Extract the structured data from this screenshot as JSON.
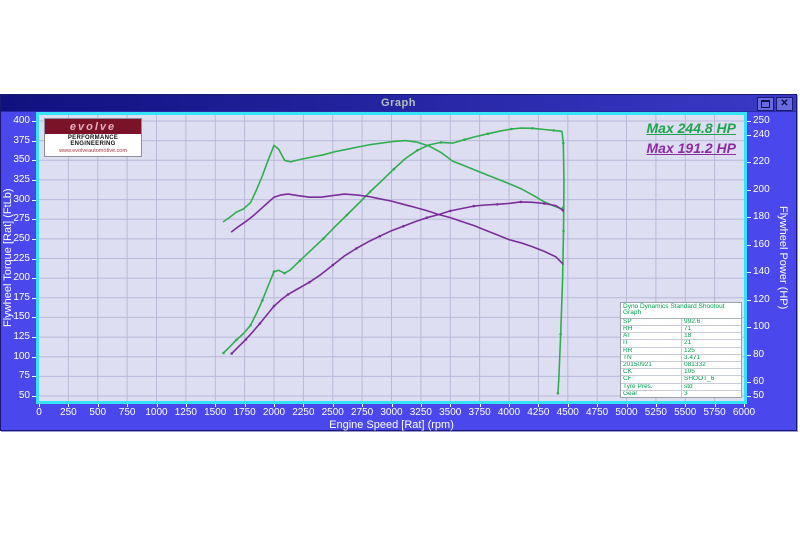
{
  "window": {
    "title": "Graph",
    "buttons": {
      "restore": "restore-window",
      "close": "close-window"
    }
  },
  "logo": {
    "brand": "evolve",
    "line1": "PERFORMANCE ENGINEERING",
    "url": "www.evolveautomotive.com"
  },
  "annotations": {
    "max_run1": "Max 244.8 HP",
    "max_run2": "Max 191.2 HP"
  },
  "info_table": {
    "header": "Dyno Dynamics Standard Shootout Graph",
    "rows": [
      [
        "SP",
        "992.6"
      ],
      [
        "RH",
        "71"
      ],
      [
        "AT",
        "18"
      ],
      [
        "IT",
        "21"
      ],
      [
        "RR",
        "125"
      ],
      [
        "TN",
        "3.471"
      ],
      [
        "20150921",
        "081332"
      ],
      [
        "CK",
        "105"
      ],
      [
        "CF",
        "SHOOT_6"
      ],
      [
        "Tyre Pres.",
        "std"
      ],
      [
        "Gear",
        "3"
      ]
    ]
  },
  "chart_data": {
    "type": "line",
    "title": "Dyno Dynamics Standard Shootout Graph",
    "xlabel": "Engine Speed [Rat] (rpm)",
    "ylabel_left": "Flywheel Torque [Rat] (FtLb)",
    "ylabel_right": "Flywheel Power (HP)",
    "x_range": [
      0,
      6000
    ],
    "x_ticks": [
      0,
      250,
      500,
      750,
      1000,
      1250,
      1500,
      1750,
      2000,
      2250,
      2500,
      2750,
      3000,
      3250,
      3500,
      3750,
      4000,
      4250,
      4500,
      4750,
      5000,
      5250,
      5500,
      5750,
      6000
    ],
    "left_range": [
      50,
      400
    ],
    "left_ticks": [
      400,
      375,
      350,
      325,
      300,
      275,
      250,
      225,
      200,
      175,
      150,
      125,
      100,
      75,
      50
    ],
    "right_range": [
      50,
      250
    ],
    "right_ticks": [
      250,
      240,
      220,
      200,
      180,
      160,
      140,
      120,
      100,
      80,
      60,
      50
    ],
    "grid": true,
    "grid_color": "#b8b8d8",
    "plot_bg": "#dedef2",
    "max_power_run1_hp": 244.8,
    "max_power_run2_hp": 191.2,
    "series": [
      {
        "id": "run1-torque",
        "name": "Run 1 Torque (FtLb)",
        "axis": "left",
        "color": "#2fae4e",
        "markers": false,
        "points": [
          [
            1570,
            272
          ],
          [
            1620,
            277
          ],
          [
            1680,
            284
          ],
          [
            1740,
            288
          ],
          [
            1800,
            296
          ],
          [
            1850,
            312
          ],
          [
            1900,
            330
          ],
          [
            1950,
            350
          ],
          [
            2000,
            369
          ],
          [
            2040,
            364
          ],
          [
            2090,
            350
          ],
          [
            2140,
            348
          ],
          [
            2220,
            351
          ],
          [
            2320,
            354
          ],
          [
            2420,
            357
          ],
          [
            2520,
            361
          ],
          [
            2620,
            364
          ],
          [
            2720,
            367
          ],
          [
            2820,
            370
          ],
          [
            2920,
            372
          ],
          [
            3020,
            374
          ],
          [
            3120,
            375
          ],
          [
            3220,
            373
          ],
          [
            3320,
            368
          ],
          [
            3420,
            360
          ],
          [
            3520,
            349
          ],
          [
            3620,
            343
          ],
          [
            3720,
            337
          ],
          [
            3820,
            331
          ],
          [
            3920,
            325
          ],
          [
            4020,
            319
          ],
          [
            4100,
            314
          ],
          [
            4200,
            306
          ],
          [
            4300,
            297
          ],
          [
            4380,
            292
          ],
          [
            4450,
            288
          ],
          [
            4462,
            291
          ]
        ]
      },
      {
        "id": "run1-power",
        "name": "Run 1 Power (HP)",
        "axis": "right",
        "color": "#2fae4e",
        "markers": true,
        "points": [
          [
            1570,
            81.3
          ],
          [
            1620,
            85.4
          ],
          [
            1680,
            90.8
          ],
          [
            1740,
            95.4
          ],
          [
            1800,
            101.4
          ],
          [
            1850,
            109.9
          ],
          [
            1900,
            119.4
          ],
          [
            1950,
            130.0
          ],
          [
            2000,
            140.5
          ],
          [
            2040,
            141.4
          ],
          [
            2090,
            139.3
          ],
          [
            2140,
            141.8
          ],
          [
            2220,
            148.4
          ],
          [
            2320,
            156.4
          ],
          [
            2420,
            164.5
          ],
          [
            2520,
            173.2
          ],
          [
            2620,
            181.6
          ],
          [
            2720,
            190.1
          ],
          [
            2820,
            198.7
          ],
          [
            2920,
            206.8
          ],
          [
            3020,
            215.1
          ],
          [
            3120,
            222.8
          ],
          [
            3220,
            228.7
          ],
          [
            3320,
            232.6
          ],
          [
            3420,
            234.4
          ],
          [
            3520,
            233.9
          ],
          [
            3620,
            236.4
          ],
          [
            3720,
            238.7
          ],
          [
            3820,
            240.7
          ],
          [
            3920,
            242.6
          ],
          [
            4020,
            244.2
          ],
          [
            4100,
            244.8
          ],
          [
            4200,
            244.7
          ],
          [
            4300,
            243.8
          ],
          [
            4380,
            243.2
          ],
          [
            4450,
            242.5
          ],
          [
            4462,
            234.0
          ],
          [
            4468,
            205.0
          ],
          [
            4464,
            170.0
          ],
          [
            4456,
            135.0
          ],
          [
            4440,
            95.0
          ],
          [
            4424,
            62.0
          ],
          [
            4416,
            52.0
          ]
        ]
      },
      {
        "id": "run2-torque",
        "name": "Run 2 Torque (FtLb)",
        "axis": "left",
        "color": "#7b2d9b",
        "markers": false,
        "points": [
          [
            1640,
            259
          ],
          [
            1700,
            266
          ],
          [
            1760,
            272
          ],
          [
            1820,
            279
          ],
          [
            1880,
            287
          ],
          [
            1940,
            295
          ],
          [
            2000,
            303
          ],
          [
            2060,
            306
          ],
          [
            2120,
            307
          ],
          [
            2200,
            305
          ],
          [
            2300,
            303
          ],
          [
            2400,
            303
          ],
          [
            2500,
            305
          ],
          [
            2600,
            307
          ],
          [
            2700,
            306
          ],
          [
            2800,
            304
          ],
          [
            2900,
            301
          ],
          [
            3000,
            298
          ],
          [
            3100,
            294
          ],
          [
            3200,
            290
          ],
          [
            3300,
            286
          ],
          [
            3400,
            281
          ],
          [
            3500,
            277
          ],
          [
            3600,
            272
          ],
          [
            3700,
            267
          ],
          [
            3800,
            261
          ],
          [
            3900,
            255
          ],
          [
            4000,
            249
          ],
          [
            4100,
            245
          ],
          [
            4200,
            240
          ],
          [
            4300,
            234
          ],
          [
            4400,
            227
          ],
          [
            4460,
            218
          ]
        ]
      },
      {
        "id": "run2-power",
        "name": "Run 2 Power (HP)",
        "axis": "right",
        "color": "#7b2d9b",
        "markers": true,
        "points": [
          [
            1640,
            80.9
          ],
          [
            1700,
            86.1
          ],
          [
            1760,
            91.1
          ],
          [
            1820,
            96.7
          ],
          [
            1880,
            102.7
          ],
          [
            1940,
            109.0
          ],
          [
            2000,
            115.4
          ],
          [
            2060,
            120.0
          ],
          [
            2120,
            123.9
          ],
          [
            2200,
            127.8
          ],
          [
            2300,
            132.7
          ],
          [
            2400,
            138.4
          ],
          [
            2500,
            145.2
          ],
          [
            2600,
            151.9
          ],
          [
            2700,
            157.3
          ],
          [
            2800,
            162.1
          ],
          [
            2900,
            166.2
          ],
          [
            3000,
            170.2
          ],
          [
            3100,
            173.5
          ],
          [
            3200,
            176.7
          ],
          [
            3300,
            179.7
          ],
          [
            3400,
            181.9
          ],
          [
            3500,
            184.6
          ],
          [
            3600,
            186.4
          ],
          [
            3700,
            188.1
          ],
          [
            3800,
            188.9
          ],
          [
            3900,
            189.4
          ],
          [
            4000,
            190.1
          ],
          [
            4100,
            191.2
          ],
          [
            4200,
            190.9
          ],
          [
            4300,
            190.0
          ],
          [
            4400,
            188.5
          ],
          [
            4460,
            185.0
          ]
        ]
      }
    ]
  }
}
